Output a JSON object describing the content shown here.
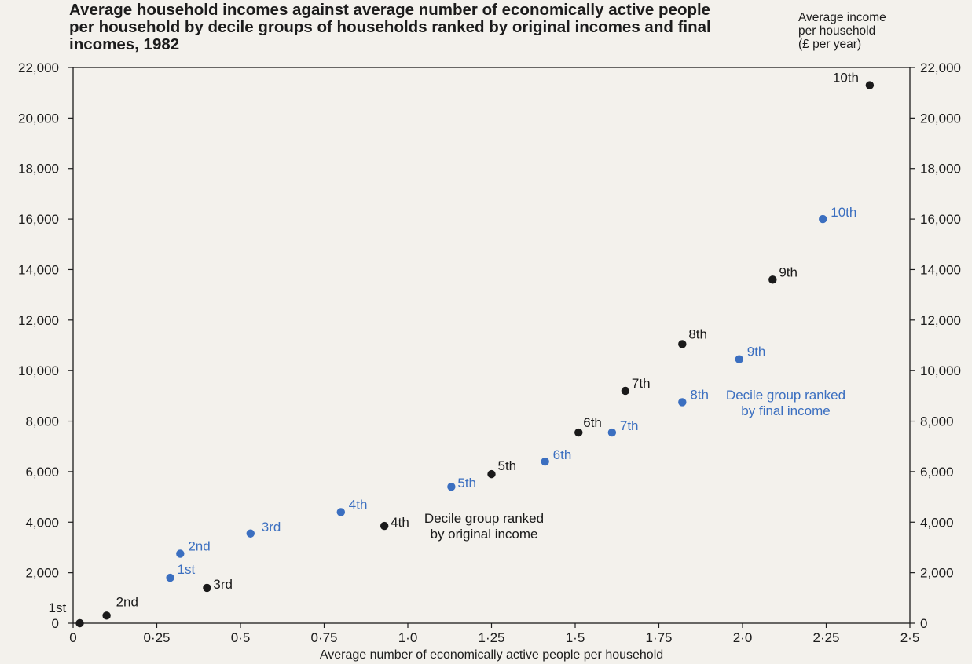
{
  "chart_data": {
    "type": "scatter",
    "title": "Average household incomes against average number of economically active people per household by decile groups of households ranked by original incomes and final incomes, 1982",
    "xlabel": "Average number of economically active people per household",
    "ylabel_right": [
      "Average income",
      "per household",
      "(£ per year)"
    ],
    "xlim": [
      0,
      2.5
    ],
    "ylim": [
      0,
      22000
    ],
    "x_ticks": [
      0,
      0.25,
      0.5,
      0.75,
      1.0,
      1.25,
      1.5,
      1.75,
      2.0,
      2.25,
      2.5
    ],
    "x_tick_labels": [
      "0",
      "0·25",
      "0·5",
      "0·75",
      "1·0",
      "1·25",
      "1·5",
      "1·75",
      "2·0",
      "2·25",
      "2·5"
    ],
    "y_ticks": [
      0,
      2000,
      4000,
      6000,
      8000,
      10000,
      12000,
      14000,
      16000,
      18000,
      20000,
      22000
    ],
    "y_tick_labels": [
      "0",
      "2,000",
      "4,000",
      "6,000",
      "8,000",
      "10,000",
      "12,000",
      "14,000",
      "16,000",
      "18,000",
      "20,000",
      "22,000"
    ],
    "series": [
      {
        "color": "#1a1a1a",
        "note": [
          "Decile group ranked",
          "by original income"
        ],
        "points": [
          {
            "label": "1st",
            "x": 0.02,
            "y": 0
          },
          {
            "label": "2nd",
            "x": 0.1,
            "y": 300
          },
          {
            "label": "3rd",
            "x": 0.4,
            "y": 1400
          },
          {
            "label": "4th",
            "x": 0.93,
            "y": 3850
          },
          {
            "label": "5th",
            "x": 1.25,
            "y": 5900
          },
          {
            "label": "6th",
            "x": 1.51,
            "y": 7550
          },
          {
            "label": "7th",
            "x": 1.65,
            "y": 9200
          },
          {
            "label": "8th",
            "x": 1.82,
            "y": 11050
          },
          {
            "label": "9th",
            "x": 2.09,
            "y": 13600
          },
          {
            "label": "10th",
            "x": 2.38,
            "y": 21300
          }
        ]
      },
      {
        "color": "#3b6fc0",
        "note": [
          "Decile group ranked",
          "by final income"
        ],
        "points": [
          {
            "label": "1st",
            "x": 0.29,
            "y": 1800
          },
          {
            "label": "2nd",
            "x": 0.32,
            "y": 2750
          },
          {
            "label": "3rd",
            "x": 0.53,
            "y": 3550
          },
          {
            "label": "4th",
            "x": 0.8,
            "y": 4400
          },
          {
            "label": "5th",
            "x": 1.13,
            "y": 5400
          },
          {
            "label": "6th",
            "x": 1.41,
            "y": 6400
          },
          {
            "label": "7th",
            "x": 1.61,
            "y": 7550
          },
          {
            "label": "8th",
            "x": 1.82,
            "y": 8750
          },
          {
            "label": "9th",
            "x": 1.99,
            "y": 10450
          },
          {
            "label": "10th",
            "x": 2.24,
            "y": 16000
          }
        ]
      }
    ]
  }
}
